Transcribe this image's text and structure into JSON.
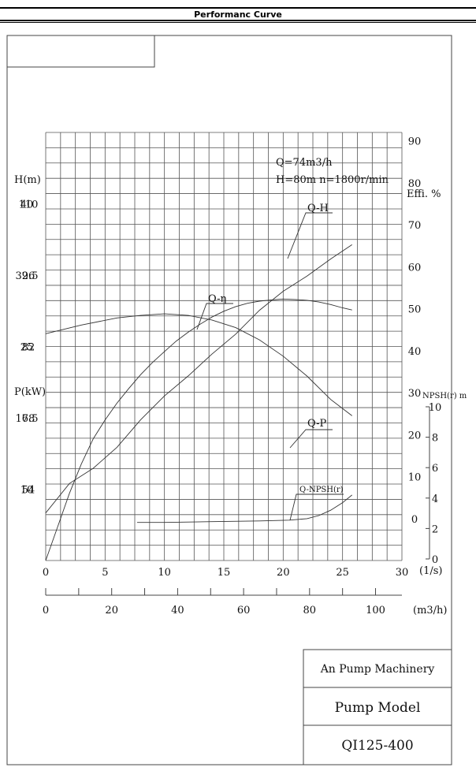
{
  "header": {
    "title": "Performanc Curve"
  },
  "chart_data": {
    "type": "line",
    "title": "",
    "annotations": [
      "Q=74m3/h",
      "H=80m   n=1800r/min"
    ],
    "x_axis": {
      "label": "(1/s)",
      "range": [
        0,
        30
      ],
      "ticks": [
        "0",
        "5",
        "10",
        "15",
        "20",
        "25",
        "30"
      ]
    },
    "x2_axis": {
      "label": "(m3/h)",
      "range": [
        0,
        108
      ],
      "ticks": [
        "0",
        "20",
        "40",
        "60",
        "80",
        "100"
      ]
    },
    "y_head": {
      "label": "H(m)",
      "range": [
        40,
        124
      ],
      "ticks": [
        "110",
        "96",
        "82",
        "68",
        "54"
      ]
    },
    "y_power": {
      "label": "P(kW)",
      "range": [
        2.5,
        47.5
      ],
      "ticks": [
        "40",
        "32.5",
        "25",
        "17.5",
        "10"
      ]
    },
    "y_eff": {
      "label": "Effi. %",
      "range": [
        -10,
        92
      ],
      "ticks": [
        "90",
        "80",
        "70",
        "60",
        "50",
        "40",
        "30",
        "20",
        "10",
        "0"
      ]
    },
    "y_npsh": {
      "label": "NPSH(r) m",
      "range": [
        0,
        10
      ],
      "ticks": [
        "10",
        "8",
        "6",
        "4",
        "2",
        "0"
      ]
    },
    "grid": true,
    "series": [
      {
        "name": "Q-H",
        "axis": "head",
        "x": [
          0,
          3,
          6,
          8,
          10,
          12,
          14,
          16,
          18,
          20,
          22,
          24,
          25.8
        ],
        "values": [
          84.5,
          86.2,
          87.6,
          88.1,
          88.4,
          88.1,
          87.2,
          85.7,
          83.3,
          80.1,
          76.2,
          71.6,
          68.4
        ]
      },
      {
        "name": "Q-η",
        "axis": "eff",
        "x": [
          0,
          1,
          2,
          3,
          4,
          5,
          6,
          7,
          8,
          9,
          10,
          11,
          12,
          13,
          14,
          15,
          16,
          17,
          18,
          19,
          20,
          21,
          22,
          23,
          24,
          25,
          25.8
        ],
        "values": [
          -10,
          -2,
          6,
          13,
          19,
          23.5,
          27.5,
          31,
          34.3,
          37.2,
          39.8,
          42.3,
          44.4,
          46.3,
          48,
          49.4,
          50.5,
          51.3,
          51.8,
          52.1,
          52.3,
          52.2,
          52,
          51.6,
          51,
          50.2,
          49.7
        ]
      },
      {
        "name": "Q-P",
        "axis": "power",
        "x": [
          0,
          2,
          4,
          6,
          8,
          10,
          12,
          14,
          16,
          18,
          20,
          22,
          24,
          25.8
        ],
        "values": [
          7.5,
          10.6,
          12.2,
          14.4,
          17.3,
          19.8,
          21.9,
          24.2,
          26.3,
          28.8,
          30.8,
          32.4,
          34.2,
          35.7
        ]
      },
      {
        "name": "Q-NPSH(r)",
        "axis": "npsh",
        "x": [
          7.7,
          10,
          14,
          18,
          20.5,
          22,
          23,
          24,
          25,
          25.8
        ],
        "values": [
          2.4,
          2.4,
          2.45,
          2.5,
          2.55,
          2.65,
          2.85,
          3.2,
          3.7,
          4.2
        ]
      }
    ]
  },
  "title_block": {
    "company": "An Pump Machinery",
    "model_label": "Pump Model",
    "model": "QI125-400"
  }
}
